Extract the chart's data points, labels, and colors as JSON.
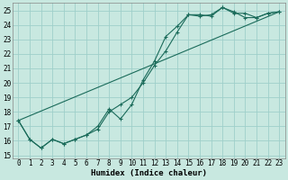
{
  "xlabel": "Humidex (Indice chaleur)",
  "xlim": [
    -0.5,
    23.5
  ],
  "ylim": [
    14.8,
    25.5
  ],
  "xticks": [
    0,
    1,
    2,
    3,
    4,
    5,
    6,
    7,
    8,
    9,
    10,
    11,
    12,
    13,
    14,
    15,
    16,
    17,
    18,
    19,
    20,
    21,
    22,
    23
  ],
  "yticks": [
    15,
    16,
    17,
    18,
    19,
    20,
    21,
    22,
    23,
    24,
    25
  ],
  "bg_color": "#c8e8e0",
  "grid_color": "#9fcfca",
  "line_color": "#1a6b5a",
  "line1_x": [
    0,
    1,
    2,
    3,
    4,
    5,
    6,
    7,
    8,
    9,
    10,
    11,
    12,
    13,
    14,
    15,
    16,
    17,
    18,
    19,
    20,
    21,
    22,
    23
  ],
  "line1_y": [
    17.4,
    16.1,
    15.5,
    16.1,
    15.8,
    16.1,
    16.4,
    16.8,
    18.0,
    18.5,
    19.0,
    20.0,
    21.2,
    22.2,
    23.5,
    24.7,
    24.6,
    24.7,
    25.2,
    24.8,
    24.8,
    24.5,
    24.8,
    24.9
  ],
  "line2_x": [
    0,
    1,
    2,
    3,
    4,
    5,
    6,
    7,
    8,
    9,
    10,
    11,
    12,
    13,
    14,
    15,
    16,
    17,
    18,
    19,
    20,
    21,
    22,
    23
  ],
  "line2_y": [
    17.4,
    16.1,
    15.5,
    16.1,
    15.8,
    16.1,
    16.4,
    17.0,
    18.2,
    17.5,
    18.5,
    20.2,
    21.5,
    23.2,
    23.9,
    24.7,
    24.7,
    24.6,
    25.2,
    24.9,
    24.5,
    24.5,
    24.8,
    24.9
  ],
  "line3_x": [
    0,
    23
  ],
  "line3_y": [
    17.4,
    24.9
  ],
  "xlabel_fontsize": 6.5,
  "tick_fontsize": 5.5
}
